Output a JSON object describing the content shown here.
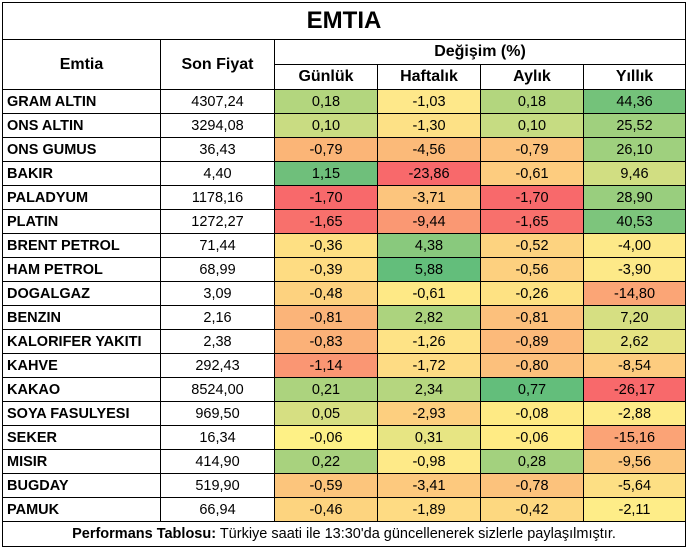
{
  "title": "EMTIA",
  "headers": {
    "commodity": "Emtia",
    "last_price": "Son Fiyat",
    "change": "Değişim (%)",
    "daily": "Günlük",
    "weekly": "Haftalık",
    "monthly": "Aylık",
    "yearly": "Yıllık"
  },
  "rows": [
    {
      "name": "GRAM ALTIN",
      "price": "4307,24",
      "daily": "0,18",
      "weekly": "-1,03",
      "monthly": "0,18",
      "yearly": "44,36",
      "colors": [
        "#b3d67e",
        "#fee88a",
        "#b3d67e",
        "#74c27a"
      ]
    },
    {
      "name": "ONS ALTIN",
      "price": "3294,08",
      "daily": "0,10",
      "weekly": "-1,30",
      "monthly": "0,10",
      "yearly": "25,52",
      "colors": [
        "#c9dc82",
        "#fde186",
        "#c6dc82",
        "#a0d07e"
      ]
    },
    {
      "name": "ONS GUMUS",
      "price": "36,43",
      "daily": "-0,79",
      "weekly": "-4,56",
      "monthly": "-0,79",
      "yearly": "26,10",
      "colors": [
        "#fbb577",
        "#fbba79",
        "#fcc27c",
        "#9fd07e"
      ]
    },
    {
      "name": "BAKIR",
      "price": "4,40",
      "daily": "1,15",
      "weekly": "-23,86",
      "monthly": "-0,61",
      "yearly": "9,46",
      "colors": [
        "#6fbf7b",
        "#f8696b",
        "#fdcc7f",
        "#d1de82"
      ]
    },
    {
      "name": "PALADYUM",
      "price": "1178,16",
      "daily": "-1,70",
      "weekly": "-3,71",
      "monthly": "-1,70",
      "yearly": "28,90",
      "colors": [
        "#f8696b",
        "#fcc57d",
        "#f8696b",
        "#99ce7e"
      ]
    },
    {
      "name": "PLATIN",
      "price": "1272,27",
      "daily": "-1,65",
      "weekly": "-9,44",
      "monthly": "-1,65",
      "yearly": "40,53",
      "colors": [
        "#f8706c",
        "#fa9873",
        "#f8706c",
        "#7dc57c"
      ]
    },
    {
      "name": "BRENT PETROL",
      "price": "71,44",
      "daily": "-0,36",
      "weekly": "4,38",
      "monthly": "-0,52",
      "yearly": "-4,00",
      "colors": [
        "#fee083",
        "#89c97d",
        "#fdd380",
        "#fde988"
      ]
    },
    {
      "name": "HAM PETROL",
      "price": "68,99",
      "daily": "-0,39",
      "weekly": "5,88",
      "monthly": "-0,56",
      "yearly": "-3,90",
      "colors": [
        "#fedc82",
        "#63be7b",
        "#fdd07f",
        "#fde988"
      ]
    },
    {
      "name": "DOGALGAZ",
      "price": "3,09",
      "daily": "-0,48",
      "weekly": "-0,61",
      "monthly": "-0,26",
      "yearly": "-14,80",
      "colors": [
        "#fdd27f",
        "#fee986",
        "#fee283",
        "#fba576"
      ]
    },
    {
      "name": "BENZIN",
      "price": "2,16",
      "daily": "-0,81",
      "weekly": "2,82",
      "monthly": "-0,81",
      "yearly": "7,20",
      "colors": [
        "#fbb479",
        "#acd37e",
        "#fcc07c",
        "#d6df82"
      ]
    },
    {
      "name": "KALORIFER YAKITI",
      "price": "2,38",
      "daily": "-0,83",
      "weekly": "-1,26",
      "monthly": "-0,89",
      "yearly": "2,62",
      "colors": [
        "#fbb178",
        "#fee386",
        "#fcba7a",
        "#e5e383"
      ]
    },
    {
      "name": "KAHVE",
      "price": "292,43",
      "daily": "-1,14",
      "weekly": "-1,72",
      "monthly": "-0,80",
      "yearly": "-8,54",
      "colors": [
        "#fa9673",
        "#fedc84",
        "#fcc07c",
        "#fdcc7f"
      ]
    },
    {
      "name": "KAKAO",
      "price": "8524,00",
      "daily": "0,21",
      "weekly": "2,34",
      "monthly": "0,77",
      "yearly": "-26,17",
      "colors": [
        "#acd37e",
        "#b5d67f",
        "#63be7b",
        "#f8696b"
      ]
    },
    {
      "name": "SOYA FASULYESI",
      "price": "969,50",
      "daily": "0,05",
      "weekly": "-2,93",
      "monthly": "-0,08",
      "yearly": "-2,88",
      "colors": [
        "#d6df82",
        "#fdcf7f",
        "#feea84",
        "#feeb88"
      ]
    },
    {
      "name": "SEKER",
      "price": "16,34",
      "daily": "-0,06",
      "weekly": "0,31",
      "monthly": "-0,06",
      "yearly": "-15,16",
      "colors": [
        "#fef186",
        "#e7e583",
        "#ffeb84",
        "#fba376"
      ]
    },
    {
      "name": "MISIR",
      "price": "414,90",
      "daily": "0,22",
      "weekly": "-0,98",
      "monthly": "0,28",
      "yearly": "-9,56",
      "colors": [
        "#a8d27e",
        "#feea88",
        "#a3d17e",
        "#fcc67d"
      ]
    },
    {
      "name": "BUGDAY",
      "price": "519,90",
      "daily": "-0,59",
      "weekly": "-3,41",
      "monthly": "-0,78",
      "yearly": "-5,64",
      "colors": [
        "#fcc57c",
        "#fdc97e",
        "#fcc27c",
        "#fddf84"
      ]
    },
    {
      "name": "PAMUK",
      "price": "66,94",
      "daily": "-0,46",
      "weekly": "-1,89",
      "monthly": "-0,42",
      "yearly": "-2,11",
      "colors": [
        "#fdd47f",
        "#fedb83",
        "#fdd880",
        "#feed88"
      ]
    }
  ],
  "footer": {
    "label": "Performans Tablosu:",
    "text": " Türkiye saati ile 13:30'da güncellenerek sizlerle paylaşılmıştır."
  }
}
